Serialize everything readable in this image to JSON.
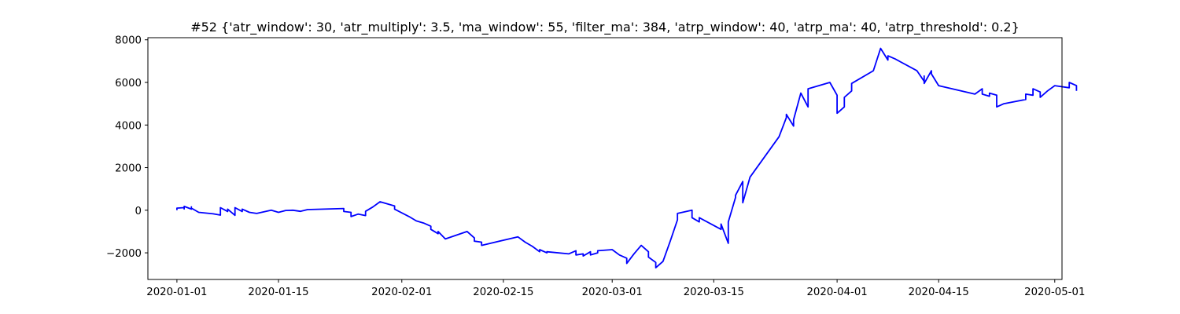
{
  "chart_data": {
    "type": "line",
    "title": "#52 {'atr_window': 30, 'atr_multiply': 3.5, 'ma_window': 55, 'filter_ma': 384, 'atrp_window': 40, 'atrp_ma': 40, 'atrp_threshold': 0.2}",
    "xlabel": "",
    "ylabel": "",
    "xlim": [
      "2019-12-28",
      "2020-05-02"
    ],
    "ylim": [
      -3250,
      8100
    ],
    "x_ticks": [
      "2020-01-01",
      "2020-01-15",
      "2020-02-01",
      "2020-02-15",
      "2020-03-01",
      "2020-03-15",
      "2020-04-01",
      "2020-04-15",
      "2020-05-01"
    ],
    "y_ticks": [
      -2000,
      0,
      2000,
      4000,
      6000,
      8000
    ],
    "grid": false,
    "legend": "none",
    "series": [
      {
        "color": "#0000ff",
        "points": [
          [
            "2020-01-01",
            0
          ],
          [
            "2020-01-01",
            100
          ],
          [
            "2020-01-02",
            120
          ],
          [
            "2020-01-02",
            60
          ],
          [
            "2020-01-02",
            180
          ],
          [
            "2020-01-03",
            50
          ],
          [
            "2020-01-03",
            160
          ],
          [
            "2020-01-03",
            100
          ],
          [
            "2020-01-04",
            -100
          ],
          [
            "2020-01-06",
            -170
          ],
          [
            "2020-01-07",
            -230
          ],
          [
            "2020-01-07",
            120
          ],
          [
            "2020-01-08",
            -60
          ],
          [
            "2020-01-08",
            50
          ],
          [
            "2020-01-09",
            -240
          ],
          [
            "2020-01-09",
            120
          ],
          [
            "2020-01-10",
            -60
          ],
          [
            "2020-01-10",
            50
          ],
          [
            "2020-01-11",
            -100
          ],
          [
            "2020-01-12",
            -150
          ],
          [
            "2020-01-14",
            0
          ],
          [
            "2020-01-15",
            -100
          ],
          [
            "2020-01-16",
            -10
          ],
          [
            "2020-01-17",
            0
          ],
          [
            "2020-01-18",
            -50
          ],
          [
            "2020-01-19",
            30
          ],
          [
            "2020-01-24",
            80
          ],
          [
            "2020-01-24",
            -60
          ],
          [
            "2020-01-25",
            -100
          ],
          [
            "2020-01-25",
            -300
          ],
          [
            "2020-01-26",
            -180
          ],
          [
            "2020-01-27",
            -250
          ],
          [
            "2020-01-27",
            -50
          ],
          [
            "2020-01-28",
            150
          ],
          [
            "2020-01-29",
            400
          ],
          [
            "2020-01-31",
            200
          ],
          [
            "2020-01-31",
            50
          ],
          [
            "2020-02-02",
            -300
          ],
          [
            "2020-02-03",
            -500
          ],
          [
            "2020-02-04",
            -600
          ],
          [
            "2020-02-05",
            -750
          ],
          [
            "2020-02-05",
            -900
          ],
          [
            "2020-02-06",
            -1100
          ],
          [
            "2020-02-06",
            -1000
          ],
          [
            "2020-02-07",
            -1350
          ],
          [
            "2020-02-10",
            -1000
          ],
          [
            "2020-02-11",
            -1300
          ],
          [
            "2020-02-11",
            -1450
          ],
          [
            "2020-02-12",
            -1500
          ],
          [
            "2020-02-12",
            -1650
          ],
          [
            "2020-02-17",
            -1250
          ],
          [
            "2020-02-18",
            -1500
          ],
          [
            "2020-02-19",
            -1700
          ],
          [
            "2020-02-20",
            -1950
          ],
          [
            "2020-02-20",
            -1850
          ],
          [
            "2020-02-21",
            -2000
          ],
          [
            "2020-02-21",
            -1950
          ],
          [
            "2020-02-24",
            -2050
          ],
          [
            "2020-02-25",
            -1900
          ],
          [
            "2020-02-25",
            -2100
          ],
          [
            "2020-02-26",
            -2050
          ],
          [
            "2020-02-26",
            -2150
          ],
          [
            "2020-02-27",
            -1950
          ],
          [
            "2020-02-27",
            -2100
          ],
          [
            "2020-02-28",
            -2000
          ],
          [
            "2020-02-28",
            -1900
          ],
          [
            "2020-03-01",
            -1850
          ],
          [
            "2020-03-02",
            -2100
          ],
          [
            "2020-03-03",
            -2250
          ],
          [
            "2020-03-03",
            -2500
          ],
          [
            "2020-03-04",
            -2050
          ],
          [
            "2020-03-05",
            -1650
          ],
          [
            "2020-03-06",
            -1950
          ],
          [
            "2020-03-06",
            -2200
          ],
          [
            "2020-03-07",
            -2450
          ],
          [
            "2020-03-07",
            -2550
          ],
          [
            "2020-03-07",
            -2700
          ],
          [
            "2020-03-08",
            -2400
          ],
          [
            "2020-03-09",
            -1450
          ],
          [
            "2020-03-10",
            -450
          ],
          [
            "2020-03-10",
            -150
          ],
          [
            "2020-03-12",
            0
          ],
          [
            "2020-03-12",
            -350
          ],
          [
            "2020-03-13",
            -550
          ],
          [
            "2020-03-13",
            -350
          ],
          [
            "2020-03-16",
            -900
          ],
          [
            "2020-03-16",
            -650
          ],
          [
            "2020-03-17",
            -1550
          ],
          [
            "2020-03-17",
            -550
          ],
          [
            "2020-03-18",
            600
          ],
          [
            "2020-03-18",
            700
          ],
          [
            "2020-03-19",
            1350
          ],
          [
            "2020-03-19",
            350
          ],
          [
            "2020-03-20",
            1550
          ],
          [
            "2020-03-24",
            3450
          ],
          [
            "2020-03-25",
            4350
          ],
          [
            "2020-03-25",
            4500
          ],
          [
            "2020-03-26",
            3950
          ],
          [
            "2020-03-26",
            4250
          ],
          [
            "2020-03-27",
            5500
          ],
          [
            "2020-03-28",
            4850
          ],
          [
            "2020-03-28",
            5700
          ],
          [
            "2020-03-31",
            6000
          ],
          [
            "2020-04-01",
            5400
          ],
          [
            "2020-04-01",
            4550
          ],
          [
            "2020-04-02",
            4850
          ],
          [
            "2020-04-02",
            5300
          ],
          [
            "2020-04-03",
            5600
          ],
          [
            "2020-04-03",
            5950
          ],
          [
            "2020-04-06",
            6550
          ],
          [
            "2020-04-07",
            7600
          ],
          [
            "2020-04-08",
            7050
          ],
          [
            "2020-04-08",
            7250
          ],
          [
            "2020-04-09",
            7100
          ],
          [
            "2020-04-12",
            6550
          ],
          [
            "2020-04-13",
            6050
          ],
          [
            "2020-04-13",
            6300
          ],
          [
            "2020-04-13",
            5950
          ],
          [
            "2020-04-14",
            6550
          ],
          [
            "2020-04-14",
            6400
          ],
          [
            "2020-04-15",
            5850
          ],
          [
            "2020-04-20",
            5450
          ],
          [
            "2020-04-21",
            5700
          ],
          [
            "2020-04-21",
            5450
          ],
          [
            "2020-04-22",
            5350
          ],
          [
            "2020-04-22",
            5500
          ],
          [
            "2020-04-23",
            5400
          ],
          [
            "2020-04-23",
            4850
          ],
          [
            "2020-04-24",
            5000
          ],
          [
            "2020-04-27",
            5200
          ],
          [
            "2020-04-27",
            5450
          ],
          [
            "2020-04-28",
            5400
          ],
          [
            "2020-04-28",
            5700
          ],
          [
            "2020-04-29",
            5550
          ],
          [
            "2020-04-29",
            5300
          ],
          [
            "2020-04-30",
            5600
          ],
          [
            "2020-05-01",
            5850
          ],
          [
            "2020-05-03",
            5750
          ],
          [
            "2020-05-03",
            6000
          ],
          [
            "2020-05-04",
            5850
          ],
          [
            "2020-05-04",
            5600
          ]
        ]
      }
    ]
  }
}
